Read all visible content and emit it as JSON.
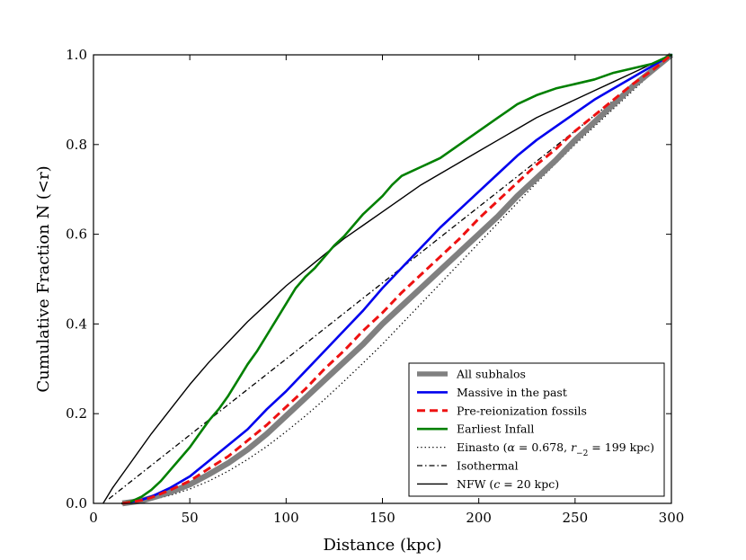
{
  "chart_data": {
    "type": "line",
    "xlabel": "Distance (kpc)",
    "ylabel": "Cumulative Fraction N (<r)",
    "xlim": [
      0,
      300
    ],
    "ylim": [
      0,
      1.0
    ],
    "x_ticks": [
      0,
      50,
      100,
      150,
      200,
      250,
      300
    ],
    "y_ticks": [
      0.0,
      0.2,
      0.4,
      0.6,
      0.8,
      1.0
    ],
    "x_tick_labels": [
      "0",
      "50",
      "100",
      "150",
      "200",
      "250",
      "300"
    ],
    "y_tick_labels": [
      "0.0",
      "0.2",
      "0.4",
      "0.6",
      "0.8",
      "1.0"
    ],
    "grid": false,
    "legend_position": "lower-right",
    "series": [
      {
        "name": "All subhalos",
        "color": "#808080",
        "style": "solid-thick",
        "points": [
          [
            15,
            0.0
          ],
          [
            20,
            0.003
          ],
          [
            25,
            0.006
          ],
          [
            30,
            0.012
          ],
          [
            40,
            0.025
          ],
          [
            50,
            0.042
          ],
          [
            60,
            0.065
          ],
          [
            70,
            0.09
          ],
          [
            80,
            0.12
          ],
          [
            90,
            0.155
          ],
          [
            100,
            0.195
          ],
          [
            110,
            0.235
          ],
          [
            120,
            0.275
          ],
          [
            130,
            0.315
          ],
          [
            140,
            0.355
          ],
          [
            150,
            0.4
          ],
          [
            160,
            0.44
          ],
          [
            170,
            0.48
          ],
          [
            180,
            0.52
          ],
          [
            190,
            0.56
          ],
          [
            200,
            0.6
          ],
          [
            210,
            0.64
          ],
          [
            220,
            0.685
          ],
          [
            230,
            0.725
          ],
          [
            240,
            0.765
          ],
          [
            250,
            0.81
          ],
          [
            260,
            0.85
          ],
          [
            270,
            0.89
          ],
          [
            280,
            0.93
          ],
          [
            290,
            0.965
          ],
          [
            300,
            1.0
          ]
        ]
      },
      {
        "name": "Massive in the past",
        "color": "#0000ee",
        "style": "solid",
        "points": [
          [
            15,
            0.0
          ],
          [
            20,
            0.004
          ],
          [
            25,
            0.008
          ],
          [
            30,
            0.015
          ],
          [
            40,
            0.035
          ],
          [
            50,
            0.06
          ],
          [
            60,
            0.095
          ],
          [
            70,
            0.13
          ],
          [
            80,
            0.165
          ],
          [
            90,
            0.21
          ],
          [
            100,
            0.25
          ],
          [
            110,
            0.295
          ],
          [
            120,
            0.34
          ],
          [
            130,
            0.385
          ],
          [
            140,
            0.43
          ],
          [
            150,
            0.48
          ],
          [
            160,
            0.525
          ],
          [
            170,
            0.57
          ],
          [
            180,
            0.615
          ],
          [
            190,
            0.655
          ],
          [
            200,
            0.695
          ],
          [
            210,
            0.735
          ],
          [
            220,
            0.775
          ],
          [
            230,
            0.81
          ],
          [
            240,
            0.84
          ],
          [
            250,
            0.87
          ],
          [
            260,
            0.9
          ],
          [
            270,
            0.925
          ],
          [
            280,
            0.95
          ],
          [
            290,
            0.975
          ],
          [
            300,
            1.0
          ]
        ]
      },
      {
        "name": "Pre-reionization fossils",
        "color": "#ee1111",
        "style": "dashed",
        "points": [
          [
            15,
            0.0
          ],
          [
            20,
            0.003
          ],
          [
            25,
            0.007
          ],
          [
            30,
            0.013
          ],
          [
            40,
            0.03
          ],
          [
            50,
            0.05
          ],
          [
            60,
            0.078
          ],
          [
            70,
            0.105
          ],
          [
            80,
            0.14
          ],
          [
            90,
            0.175
          ],
          [
            100,
            0.215
          ],
          [
            110,
            0.255
          ],
          [
            120,
            0.3
          ],
          [
            130,
            0.34
          ],
          [
            140,
            0.385
          ],
          [
            150,
            0.425
          ],
          [
            160,
            0.47
          ],
          [
            170,
            0.51
          ],
          [
            180,
            0.55
          ],
          [
            190,
            0.59
          ],
          [
            200,
            0.635
          ],
          [
            210,
            0.675
          ],
          [
            220,
            0.715
          ],
          [
            230,
            0.755
          ],
          [
            240,
            0.79
          ],
          [
            250,
            0.83
          ],
          [
            260,
            0.865
          ],
          [
            270,
            0.9
          ],
          [
            280,
            0.935
          ],
          [
            290,
            0.965
          ],
          [
            300,
            1.0
          ]
        ]
      },
      {
        "name": "Earliest Infall",
        "color": "#008000",
        "style": "solid",
        "points": [
          [
            15,
            0.0
          ],
          [
            20,
            0.005
          ],
          [
            25,
            0.015
          ],
          [
            30,
            0.03
          ],
          [
            35,
            0.05
          ],
          [
            40,
            0.075
          ],
          [
            45,
            0.1
          ],
          [
            50,
            0.125
          ],
          [
            55,
            0.155
          ],
          [
            60,
            0.185
          ],
          [
            65,
            0.21
          ],
          [
            70,
            0.24
          ],
          [
            75,
            0.275
          ],
          [
            80,
            0.31
          ],
          [
            85,
            0.34
          ],
          [
            90,
            0.375
          ],
          [
            95,
            0.41
          ],
          [
            100,
            0.445
          ],
          [
            105,
            0.48
          ],
          [
            110,
            0.505
          ],
          [
            115,
            0.525
          ],
          [
            120,
            0.55
          ],
          [
            125,
            0.575
          ],
          [
            130,
            0.595
          ],
          [
            135,
            0.62
          ],
          [
            140,
            0.645
          ],
          [
            145,
            0.665
          ],
          [
            150,
            0.685
          ],
          [
            155,
            0.71
          ],
          [
            160,
            0.73
          ],
          [
            165,
            0.74
          ],
          [
            170,
            0.75
          ],
          [
            175,
            0.76
          ],
          [
            180,
            0.77
          ],
          [
            185,
            0.785
          ],
          [
            190,
            0.8
          ],
          [
            195,
            0.815
          ],
          [
            200,
            0.83
          ],
          [
            205,
            0.845
          ],
          [
            210,
            0.86
          ],
          [
            215,
            0.875
          ],
          [
            220,
            0.89
          ],
          [
            225,
            0.9
          ],
          [
            230,
            0.91
          ],
          [
            240,
            0.925
          ],
          [
            250,
            0.935
          ],
          [
            260,
            0.945
          ],
          [
            270,
            0.96
          ],
          [
            280,
            0.97
          ],
          [
            290,
            0.98
          ],
          [
            300,
            1.0
          ]
        ]
      },
      {
        "name": "Einasto (α = 0.678, r₋₂ = 199 kpc)",
        "name_parts": [
          "Einasto (",
          "α",
          " = 0.678, ",
          "r",
          "−2",
          " = 199 kpc)"
        ],
        "color": "#000000",
        "style": "dotted",
        "points": [
          [
            15,
            0.0
          ],
          [
            20,
            0.002
          ],
          [
            30,
            0.008
          ],
          [
            40,
            0.018
          ],
          [
            50,
            0.032
          ],
          [
            60,
            0.05
          ],
          [
            70,
            0.072
          ],
          [
            80,
            0.098
          ],
          [
            90,
            0.127
          ],
          [
            100,
            0.16
          ],
          [
            110,
            0.195
          ],
          [
            120,
            0.232
          ],
          [
            130,
            0.272
          ],
          [
            140,
            0.313
          ],
          [
            150,
            0.355
          ],
          [
            160,
            0.4
          ],
          [
            170,
            0.445
          ],
          [
            180,
            0.49
          ],
          [
            190,
            0.535
          ],
          [
            200,
            0.58
          ],
          [
            210,
            0.625
          ],
          [
            220,
            0.67
          ],
          [
            230,
            0.715
          ],
          [
            240,
            0.758
          ],
          [
            250,
            0.8
          ],
          [
            260,
            0.84
          ],
          [
            270,
            0.88
          ],
          [
            280,
            0.92
          ],
          [
            290,
            0.96
          ],
          [
            300,
            1.0
          ]
        ]
      },
      {
        "name": "Isothermal",
        "color": "#000000",
        "style": "dashdot",
        "points": [
          [
            8,
            0.01
          ],
          [
            300,
            1.0
          ]
        ]
      },
      {
        "name": "NFW (c = 20 kpc)",
        "name_parts": [
          "NFW (",
          "c",
          " = 20 kpc)"
        ],
        "color": "#000000",
        "style": "solid-thin",
        "points": [
          [
            5,
            0.0
          ],
          [
            10,
            0.035
          ],
          [
            20,
            0.095
          ],
          [
            30,
            0.155
          ],
          [
            40,
            0.21
          ],
          [
            50,
            0.265
          ],
          [
            60,
            0.315
          ],
          [
            70,
            0.36
          ],
          [
            80,
            0.405
          ],
          [
            90,
            0.445
          ],
          [
            100,
            0.485
          ],
          [
            110,
            0.52
          ],
          [
            120,
            0.555
          ],
          [
            130,
            0.59
          ],
          [
            140,
            0.62
          ],
          [
            150,
            0.65
          ],
          [
            160,
            0.68
          ],
          [
            170,
            0.71
          ],
          [
            180,
            0.735
          ],
          [
            190,
            0.76
          ],
          [
            200,
            0.785
          ],
          [
            210,
            0.81
          ],
          [
            220,
            0.835
          ],
          [
            230,
            0.86
          ],
          [
            240,
            0.88
          ],
          [
            250,
            0.9
          ],
          [
            260,
            0.92
          ],
          [
            270,
            0.94
          ],
          [
            280,
            0.96
          ],
          [
            290,
            0.98
          ],
          [
            300,
            1.0
          ]
        ]
      }
    ]
  }
}
